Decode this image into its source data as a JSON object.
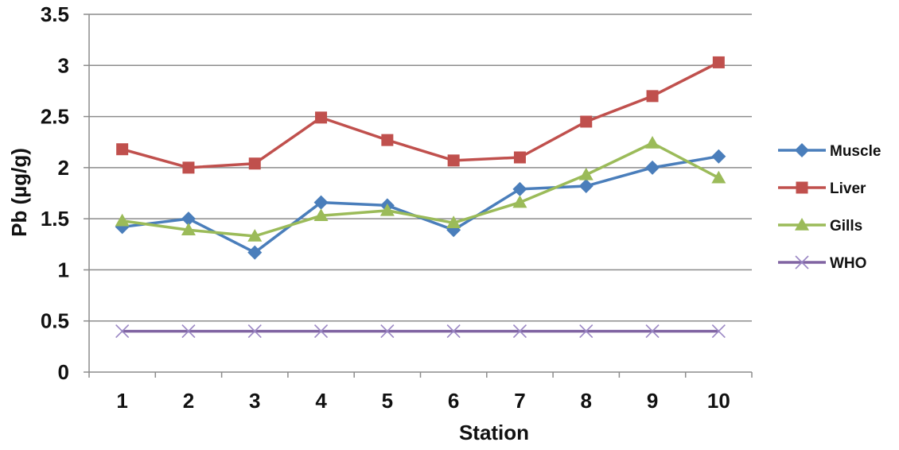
{
  "chart_data": {
    "type": "line",
    "title": "",
    "xlabel": "Station",
    "ylabel": "Pb (µg/g)",
    "categories": [
      "1",
      "2",
      "3",
      "4",
      "5",
      "6",
      "7",
      "8",
      "9",
      "10"
    ],
    "ylim": [
      0,
      3.5
    ],
    "yticks": [
      "0",
      "0.5",
      "1",
      "1.5",
      "2",
      "2.5",
      "3",
      "3.5"
    ],
    "grid": true,
    "legend_position": "right",
    "series": [
      {
        "name": "Muscle",
        "color": "#4a7ebb",
        "marker": "diamond",
        "values": [
          1.42,
          1.5,
          1.17,
          1.66,
          1.63,
          1.39,
          1.79,
          1.82,
          2.0,
          2.11
        ]
      },
      {
        "name": "Liver",
        "color": "#c0504d",
        "marker": "square",
        "values": [
          2.18,
          2.0,
          2.04,
          2.49,
          2.27,
          2.07,
          2.1,
          2.45,
          2.7,
          3.03
        ]
      },
      {
        "name": "Gills",
        "color": "#9bbb59",
        "marker": "triangle",
        "values": [
          1.48,
          1.39,
          1.33,
          1.53,
          1.58,
          1.46,
          1.66,
          1.93,
          2.24,
          1.9
        ]
      },
      {
        "name": "WHO",
        "color": "#8064a2",
        "marker": "x",
        "values": [
          0.4,
          0.4,
          0.4,
          0.4,
          0.4,
          0.4,
          0.4,
          0.4,
          0.4,
          0.4
        ]
      }
    ]
  }
}
